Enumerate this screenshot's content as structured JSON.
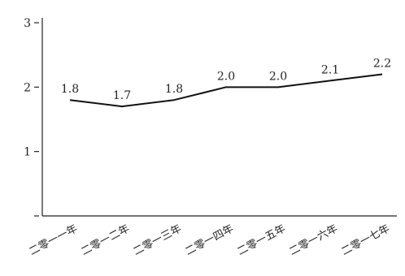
{
  "chart_data": {
    "type": "line",
    "title": "",
    "xlabel": "",
    "ylabel": "",
    "categories": [
      "二零一一年",
      "二零一二年",
      "二零一三年",
      "二零一四年",
      "二零一五年",
      "二零一六年",
      "二零一七年"
    ],
    "series": [
      {
        "values": [
          1.8,
          1.7,
          1.8,
          2.0,
          2.0,
          2.1,
          2.2
        ],
        "labels": [
          "1.8",
          "1.7",
          "1.8",
          "2.0",
          "2.0",
          "2.1",
          "2.2"
        ],
        "color": "#111111"
      }
    ],
    "ylim": [
      0,
      3
    ],
    "y_ticks": [
      {
        "value": 0,
        "label": ""
      },
      {
        "value": 1,
        "label": "1"
      },
      {
        "value": 2,
        "label": "2"
      },
      {
        "value": 3,
        "label": "3"
      }
    ],
    "grid": false,
    "legend": "none"
  }
}
